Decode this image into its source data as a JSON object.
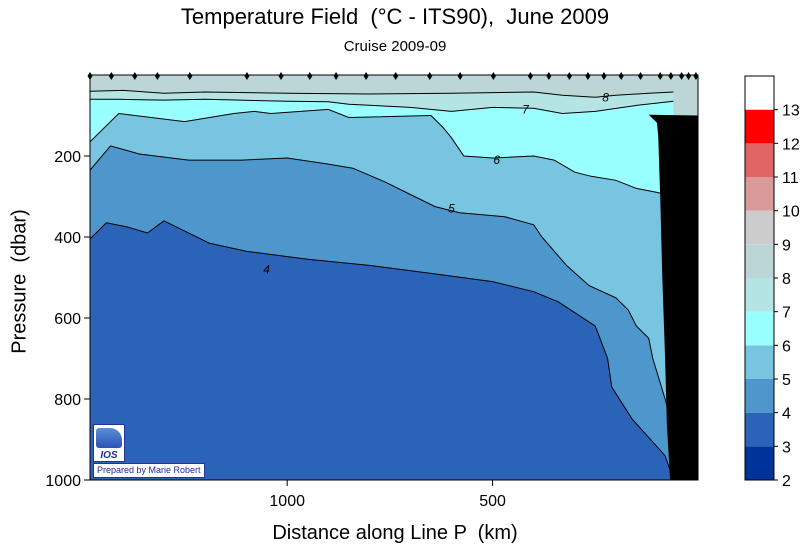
{
  "chart_data": {
    "type": "heatmap",
    "subtype": "filled-contour-section",
    "title": "Temperature Field  (°C - ITS90),  June 2009",
    "subtitle": "Cruise 2009-09",
    "xlabel": "Distance along Line P  (km)",
    "ylabel": "Pressure  (dbar)",
    "xlim": [
      1480,
      0
    ],
    "ylim": [
      1000,
      0
    ],
    "x_ticks": [
      {
        "value": 1000,
        "label": "1000"
      },
      {
        "value": 500,
        "label": "500"
      }
    ],
    "y_ticks": [
      {
        "value": 200,
        "label": "200"
      },
      {
        "value": 400,
        "label": "400"
      },
      {
        "value": 600,
        "label": "600"
      },
      {
        "value": 800,
        "label": "800"
      },
      {
        "value": 1000,
        "label": "1000"
      }
    ],
    "colorbar": {
      "levels": [
        2,
        3,
        4,
        5,
        6,
        7,
        8,
        9,
        10,
        11,
        12,
        13
      ],
      "colors": [
        "#003399",
        "#2b63b8",
        "#4d97cd",
        "#78c5e2",
        "#99ffff",
        "#b4e4e4",
        "#bcd6d6",
        "#cccccc",
        "#d99a9a",
        "#e06666",
        "#ff0000",
        "#ffffff"
      ],
      "tick_labels": [
        "2",
        "3",
        "4",
        "5",
        "6",
        "7",
        "8",
        "9",
        "10",
        "11",
        "12",
        "13"
      ]
    },
    "isotherms": [
      {
        "value": 4,
        "label": "4",
        "points": [
          [
            1480,
            405
          ],
          [
            1440,
            365
          ],
          [
            1390,
            375
          ],
          [
            1340,
            390
          ],
          [
            1300,
            360
          ],
          [
            1260,
            380
          ],
          [
            1190,
            415
          ],
          [
            1100,
            435
          ],
          [
            950,
            455
          ],
          [
            800,
            470
          ],
          [
            650,
            490
          ],
          [
            500,
            510
          ],
          [
            400,
            535
          ],
          [
            340,
            560
          ],
          [
            250,
            620
          ],
          [
            220,
            700
          ],
          [
            210,
            770
          ],
          [
            160,
            850
          ],
          [
            80,
            940
          ],
          [
            60,
            1000
          ]
        ]
      },
      {
        "value": 5,
        "label": "5",
        "points": [
          [
            1480,
            235
          ],
          [
            1430,
            175
          ],
          [
            1360,
            195
          ],
          [
            1240,
            210
          ],
          [
            1110,
            210
          ],
          [
            1000,
            205
          ],
          [
            900,
            220
          ],
          [
            840,
            230
          ],
          [
            760,
            265
          ],
          [
            700,
            295
          ],
          [
            640,
            325
          ],
          [
            580,
            340
          ],
          [
            470,
            350
          ],
          [
            400,
            370
          ],
          [
            380,
            400
          ],
          [
            320,
            470
          ],
          [
            265,
            520
          ],
          [
            200,
            550
          ],
          [
            170,
            580
          ],
          [
            150,
            620
          ],
          [
            120,
            650
          ],
          [
            110,
            700
          ],
          [
            80,
            800
          ],
          [
            55,
            900
          ]
        ]
      },
      {
        "value": 6,
        "label": "6",
        "points": [
          [
            1480,
            165
          ],
          [
            1410,
            95
          ],
          [
            1250,
            115
          ],
          [
            1130,
            95
          ],
          [
            1080,
            90
          ],
          [
            1040,
            95
          ],
          [
            900,
            85
          ],
          [
            850,
            105
          ],
          [
            650,
            100
          ],
          [
            620,
            130
          ],
          [
            600,
            155
          ],
          [
            570,
            200
          ],
          [
            500,
            205
          ],
          [
            400,
            200
          ],
          [
            350,
            210
          ],
          [
            300,
            240
          ],
          [
            260,
            250
          ],
          [
            200,
            260
          ],
          [
            150,
            280
          ],
          [
            100,
            290
          ],
          [
            60,
            300
          ]
        ]
      },
      {
        "value": 7,
        "label": "7",
        "points": [
          [
            1480,
            60
          ],
          [
            1410,
            60
          ],
          [
            1300,
            62
          ],
          [
            1200,
            60
          ],
          [
            1000,
            65
          ],
          [
            900,
            66
          ],
          [
            850,
            72
          ],
          [
            700,
            80
          ],
          [
            600,
            90
          ],
          [
            500,
            80
          ],
          [
            400,
            82
          ],
          [
            330,
            95
          ],
          [
            250,
            90
          ],
          [
            150,
            75
          ],
          [
            60,
            65
          ]
        ]
      },
      {
        "value": 8,
        "label": "8",
        "points": [
          [
            1480,
            40
          ],
          [
            1400,
            38
          ],
          [
            1300,
            45
          ],
          [
            1200,
            42
          ],
          [
            1000,
            45
          ],
          [
            800,
            47
          ],
          [
            600,
            45
          ],
          [
            400,
            42
          ],
          [
            330,
            50
          ],
          [
            250,
            55
          ],
          [
            200,
            50
          ],
          [
            120,
            45
          ],
          [
            60,
            42
          ]
        ]
      }
    ],
    "contour_labels": [
      {
        "value": 4,
        "text": "4",
        "x": 1050,
        "y": 480
      },
      {
        "value": 5,
        "text": "5",
        "x": 600,
        "y": 330
      },
      {
        "value": 6,
        "text": "6",
        "x": 490,
        "y": 210
      },
      {
        "value": 7,
        "text": "7",
        "x": 420,
        "y": 85
      },
      {
        "value": 8,
        "text": "8",
        "x": 225,
        "y": 55
      }
    ],
    "stations": [
      1480,
      1428,
      1371,
      1316,
      1237,
      1098,
      1015,
      945,
      881,
      808,
      736,
      653,
      579,
      498,
      408,
      363,
      313,
      268,
      229,
      187,
      140,
      92,
      66,
      40,
      23,
      5
    ],
    "bottom_topography": [
      [
        68,
        1000
      ],
      [
        76,
        860
      ],
      [
        80,
        700
      ],
      [
        87,
        500
      ],
      [
        92,
        300
      ],
      [
        97,
        150
      ],
      [
        100,
        118
      ],
      [
        120,
        98
      ],
      [
        0,
        100
      ],
      [
        0,
        1000
      ]
    ]
  },
  "logo": {
    "text": "IOS"
  },
  "credit": "Prepared by Marie Robert"
}
